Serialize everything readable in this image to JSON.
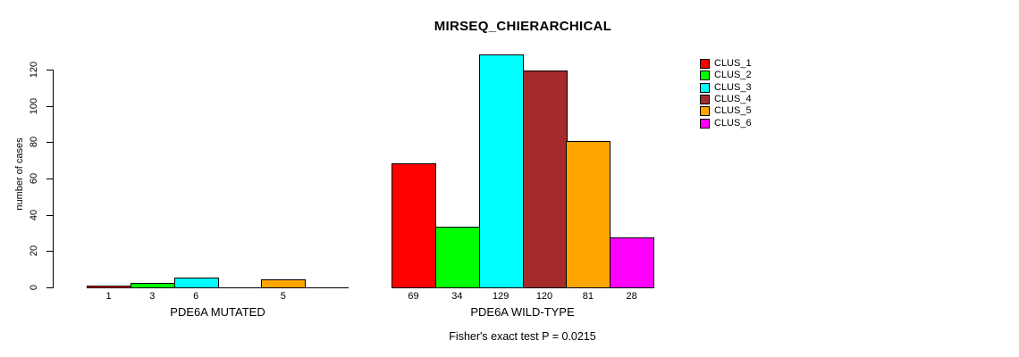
{
  "chart_data": {
    "type": "bar",
    "title": "MIRSEQ_CHIERARCHICAL",
    "ylabel": "number of cases",
    "yticks": [
      0,
      20,
      40,
      60,
      80,
      100,
      120
    ],
    "ylim": [
      0,
      130
    ],
    "grid": false,
    "legend_position": "top-right",
    "series_names": [
      "CLUS_1",
      "CLUS_2",
      "CLUS_3",
      "CLUS_4",
      "CLUS_5",
      "CLUS_6"
    ],
    "series_colors": [
      "#FF0000",
      "#00FF00",
      "#00FFFF",
      "#A52A2A",
      "#FFA500",
      "#FF00FF"
    ],
    "groups": [
      {
        "label": "PDE6A MUTATED",
        "values": [
          1,
          3,
          6,
          0,
          5,
          0
        ]
      },
      {
        "label": "PDE6A WILD-TYPE",
        "values": [
          69,
          34,
          129,
          120,
          81,
          28
        ]
      }
    ],
    "note": "Fisher's exact test P = 0.0215"
  },
  "legend": {
    "items": [
      {
        "label": "CLUS_1",
        "color": "#FF0000"
      },
      {
        "label": "CLUS_2",
        "color": "#00FF00"
      },
      {
        "label": "CLUS_3",
        "color": "#00FFFF"
      },
      {
        "label": "CLUS_4",
        "color": "#A52A2A"
      },
      {
        "label": "CLUS_5",
        "color": "#FFA500"
      },
      {
        "label": "CLUS_6",
        "color": "#FF00FF"
      }
    ]
  },
  "colors": {
    "background": "#FFFFFF",
    "axis": "#000000",
    "text": "#000000"
  }
}
